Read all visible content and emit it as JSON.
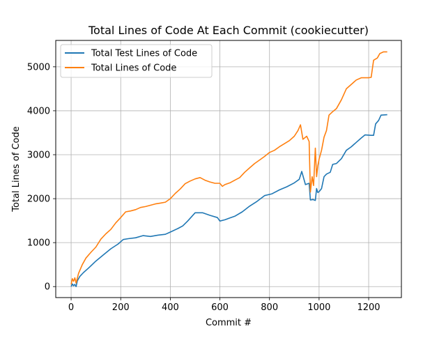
{
  "chart_data": {
    "type": "line",
    "title": "Total Lines of Code At Each Commit (cookiecutter)",
    "xlabel": "Commit #",
    "ylabel": "Total Lines of Code",
    "xlim": [
      -62,
      1332
    ],
    "ylim": [
      -250,
      5600
    ],
    "xticks": [
      0,
      200,
      400,
      600,
      800,
      1000,
      1200
    ],
    "yticks": [
      0,
      1000,
      2000,
      3000,
      4000,
      5000
    ],
    "grid": true,
    "legend_position": "top-left",
    "series": [
      {
        "name": "Total Test Lines of Code",
        "color": "#1f77b4",
        "points": [
          [
            0,
            0
          ],
          [
            5,
            60
          ],
          [
            10,
            20
          ],
          [
            15,
            50
          ],
          [
            20,
            0
          ],
          [
            25,
            130
          ],
          [
            35,
            230
          ],
          [
            50,
            320
          ],
          [
            70,
            420
          ],
          [
            100,
            580
          ],
          [
            130,
            720
          ],
          [
            160,
            860
          ],
          [
            190,
            970
          ],
          [
            210,
            1070
          ],
          [
            230,
            1090
          ],
          [
            260,
            1110
          ],
          [
            290,
            1160
          ],
          [
            320,
            1140
          ],
          [
            350,
            1170
          ],
          [
            380,
            1190
          ],
          [
            400,
            1240
          ],
          [
            430,
            1320
          ],
          [
            450,
            1380
          ],
          [
            470,
            1490
          ],
          [
            500,
            1680
          ],
          [
            530,
            1680
          ],
          [
            560,
            1620
          ],
          [
            590,
            1570
          ],
          [
            600,
            1490
          ],
          [
            620,
            1520
          ],
          [
            640,
            1560
          ],
          [
            660,
            1600
          ],
          [
            690,
            1700
          ],
          [
            720,
            1830
          ],
          [
            750,
            1940
          ],
          [
            780,
            2070
          ],
          [
            810,
            2110
          ],
          [
            840,
            2200
          ],
          [
            870,
            2270
          ],
          [
            900,
            2360
          ],
          [
            920,
            2440
          ],
          [
            930,
            2620
          ],
          [
            945,
            2320
          ],
          [
            960,
            2350
          ],
          [
            965,
            1970
          ],
          [
            975,
            1980
          ],
          [
            985,
            1960
          ],
          [
            990,
            2230
          ],
          [
            995,
            2140
          ],
          [
            1000,
            2160
          ],
          [
            1010,
            2230
          ],
          [
            1020,
            2500
          ],
          [
            1030,
            2560
          ],
          [
            1045,
            2600
          ],
          [
            1055,
            2780
          ],
          [
            1070,
            2800
          ],
          [
            1090,
            2910
          ],
          [
            1110,
            3100
          ],
          [
            1130,
            3180
          ],
          [
            1150,
            3280
          ],
          [
            1170,
            3380
          ],
          [
            1185,
            3450
          ],
          [
            1210,
            3440
          ],
          [
            1220,
            3440
          ],
          [
            1228,
            3700
          ],
          [
            1240,
            3780
          ],
          [
            1250,
            3900
          ],
          [
            1275,
            3910
          ]
        ]
      },
      {
        "name": "Total Lines of Code",
        "color": "#ff7f0e",
        "points": [
          [
            0,
            50
          ],
          [
            5,
            180
          ],
          [
            10,
            120
          ],
          [
            15,
            200
          ],
          [
            20,
            80
          ],
          [
            30,
            300
          ],
          [
            45,
            500
          ],
          [
            60,
            650
          ],
          [
            80,
            780
          ],
          [
            100,
            900
          ],
          [
            120,
            1080
          ],
          [
            140,
            1200
          ],
          [
            160,
            1300
          ],
          [
            180,
            1450
          ],
          [
            200,
            1570
          ],
          [
            220,
            1700
          ],
          [
            240,
            1720
          ],
          [
            260,
            1750
          ],
          [
            280,
            1800
          ],
          [
            300,
            1820
          ],
          [
            320,
            1850
          ],
          [
            340,
            1880
          ],
          [
            360,
            1900
          ],
          [
            380,
            1920
          ],
          [
            400,
            2000
          ],
          [
            420,
            2120
          ],
          [
            440,
            2220
          ],
          [
            460,
            2340
          ],
          [
            480,
            2400
          ],
          [
            500,
            2450
          ],
          [
            520,
            2480
          ],
          [
            540,
            2420
          ],
          [
            560,
            2380
          ],
          [
            580,
            2350
          ],
          [
            600,
            2350
          ],
          [
            610,
            2280
          ],
          [
            620,
            2320
          ],
          [
            640,
            2360
          ],
          [
            660,
            2420
          ],
          [
            680,
            2480
          ],
          [
            700,
            2600
          ],
          [
            720,
            2700
          ],
          [
            740,
            2800
          ],
          [
            760,
            2880
          ],
          [
            780,
            2960
          ],
          [
            800,
            3050
          ],
          [
            820,
            3100
          ],
          [
            840,
            3180
          ],
          [
            860,
            3250
          ],
          [
            880,
            3320
          ],
          [
            900,
            3420
          ],
          [
            915,
            3550
          ],
          [
            925,
            3680
          ],
          [
            935,
            3350
          ],
          [
            950,
            3420
          ],
          [
            960,
            3300
          ],
          [
            965,
            2150
          ],
          [
            972,
            2500
          ],
          [
            978,
            2300
          ],
          [
            985,
            3150
          ],
          [
            990,
            2500
          ],
          [
            995,
            2750
          ],
          [
            1000,
            2900
          ],
          [
            1010,
            3100
          ],
          [
            1020,
            3400
          ],
          [
            1030,
            3550
          ],
          [
            1040,
            3900
          ],
          [
            1055,
            3980
          ],
          [
            1070,
            4050
          ],
          [
            1090,
            4250
          ],
          [
            1110,
            4500
          ],
          [
            1130,
            4600
          ],
          [
            1150,
            4700
          ],
          [
            1170,
            4750
          ],
          [
            1200,
            4750
          ],
          [
            1210,
            4760
          ],
          [
            1220,
            5150
          ],
          [
            1235,
            5200
          ],
          [
            1245,
            5300
          ],
          [
            1260,
            5340
          ],
          [
            1275,
            5340
          ]
        ]
      }
    ]
  }
}
